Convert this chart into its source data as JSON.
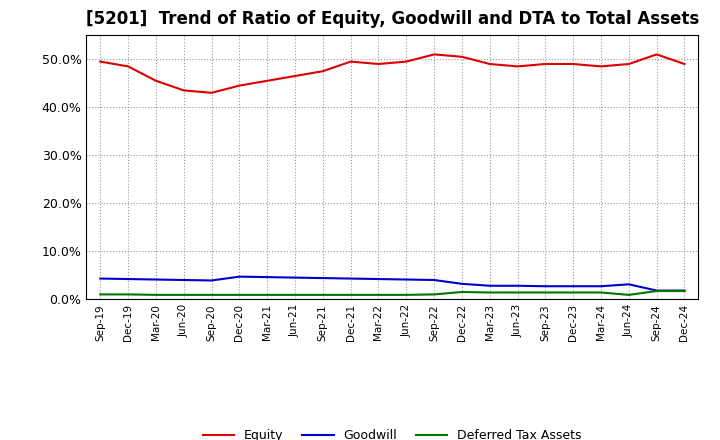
{
  "title": "[5201]  Trend of Ratio of Equity, Goodwill and DTA to Total Assets",
  "x_labels": [
    "Sep-19",
    "Dec-19",
    "Mar-20",
    "Jun-20",
    "Sep-20",
    "Dec-20",
    "Mar-21",
    "Jun-21",
    "Sep-21",
    "Dec-21",
    "Mar-22",
    "Jun-22",
    "Sep-22",
    "Dec-22",
    "Mar-23",
    "Jun-23",
    "Sep-23",
    "Dec-23",
    "Mar-24",
    "Jun-24",
    "Sep-24",
    "Dec-24"
  ],
  "equity": [
    49.5,
    48.5,
    45.5,
    43.5,
    43.0,
    44.5,
    45.5,
    46.5,
    47.5,
    49.5,
    49.0,
    49.5,
    51.0,
    50.5,
    49.0,
    48.5,
    49.0,
    49.0,
    48.5,
    49.0,
    51.0,
    49.0
  ],
  "goodwill": [
    4.3,
    4.2,
    4.1,
    4.0,
    3.9,
    4.7,
    4.6,
    4.5,
    4.4,
    4.3,
    4.2,
    4.1,
    4.0,
    3.2,
    2.8,
    2.8,
    2.7,
    2.7,
    2.7,
    3.1,
    1.8,
    1.8
  ],
  "dta": [
    1.0,
    1.0,
    0.9,
    0.9,
    0.9,
    0.9,
    0.9,
    0.9,
    0.9,
    0.9,
    0.9,
    0.9,
    1.0,
    1.5,
    1.4,
    1.4,
    1.4,
    1.4,
    1.4,
    0.9,
    1.7,
    1.7
  ],
  "equity_color": "#dd0000",
  "goodwill_color": "#0000cc",
  "dta_color": "#007700",
  "ylim": [
    0,
    55
  ],
  "yticks": [
    0,
    10,
    20,
    30,
    40,
    50
  ],
  "bg_color": "#ffffff",
  "plot_bg_color": "#ffffff",
  "grid_color": "#999999",
  "title_fontsize": 12,
  "legend_labels": [
    "Equity",
    "Goodwill",
    "Deferred Tax Assets"
  ]
}
